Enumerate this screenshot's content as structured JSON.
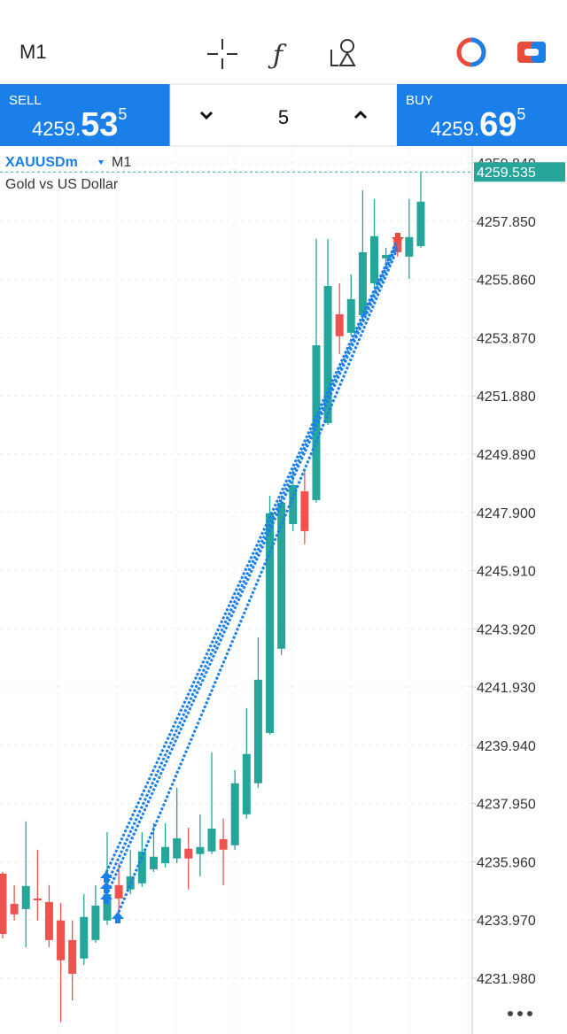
{
  "toolbar": {
    "timeframe": "M1"
  },
  "trade_bar": {
    "sell": {
      "label": "SELL",
      "price_head": "4259.",
      "price_big": "53",
      "price_sup": "5"
    },
    "lot": "5",
    "buy": {
      "label": "BUY",
      "price_head": "4259.",
      "price_big": "69",
      "price_sup": "5"
    }
  },
  "chart_data": {
    "type": "candlestick",
    "symbol": "XAUUSDm",
    "timeframe": "M1",
    "description": "Gold vs US Dollar",
    "up_color": "#26a69a",
    "down_color": "#ef5350",
    "ylim": [
      4230.07,
      4260.42
    ],
    "yticks": [
      {
        "value": 4259.84,
        "label": "4259.840"
      },
      {
        "value": 4257.85,
        "label": "4257.850"
      },
      {
        "value": 4255.86,
        "label": "4255.860"
      },
      {
        "value": 4253.87,
        "label": "4253.870"
      },
      {
        "value": 4251.88,
        "label": "4251.880"
      },
      {
        "value": 4249.89,
        "label": "4249.890"
      },
      {
        "value": 4247.9,
        "label": "4247.900"
      },
      {
        "value": 4245.91,
        "label": "4245.910"
      },
      {
        "value": 4243.92,
        "label": "4243.920"
      },
      {
        "value": 4241.93,
        "label": "4241.930"
      },
      {
        "value": 4239.94,
        "label": "4239.940"
      },
      {
        "value": 4237.95,
        "label": "4237.950"
      },
      {
        "value": 4235.96,
        "label": "4235.960"
      },
      {
        "value": 4233.97,
        "label": "4233.970"
      },
      {
        "value": 4231.98,
        "label": "4231.980"
      }
    ],
    "grid": true,
    "current_price": 4259.535,
    "candles": [
      {
        "open": 4235.55,
        "high": 4235.61,
        "low": 4233.34,
        "close": 4233.49
      },
      {
        "open": 4234.52,
        "high": 4235.16,
        "low": 4233.95,
        "close": 4234.16
      },
      {
        "open": 4234.34,
        "high": 4237.34,
        "low": 4233.04,
        "close": 4235.13
      },
      {
        "open": 4234.7,
        "high": 4236.37,
        "low": 4233.95,
        "close": 4234.64
      },
      {
        "open": 4234.58,
        "high": 4235.16,
        "low": 4233.04,
        "close": 4233.28
      },
      {
        "open": 4233.95,
        "high": 4234.55,
        "low": 4230.47,
        "close": 4232.59
      },
      {
        "open": 4233.28,
        "high": 4233.95,
        "low": 4231.22,
        "close": 4232.13
      },
      {
        "open": 4232.65,
        "high": 4234.85,
        "low": 4232.43,
        "close": 4234.07
      },
      {
        "open": 4233.28,
        "high": 4235.16,
        "low": 4233.19,
        "close": 4234.46
      },
      {
        "open": 4233.95,
        "high": 4236.97,
        "low": 4233.8,
        "close": 4234.85
      },
      {
        "open": 4235.16,
        "high": 4235.91,
        "low": 4234.1,
        "close": 4234.7
      },
      {
        "open": 4235.01,
        "high": 4236.37,
        "low": 4234.85,
        "close": 4235.46
      },
      {
        "open": 4235.22,
        "high": 4236.97,
        "low": 4235.1,
        "close": 4236.31
      },
      {
        "open": 4235.7,
        "high": 4237.28,
        "low": 4235.61,
        "close": 4236.13
      },
      {
        "open": 4235.91,
        "high": 4237.28,
        "low": 4235.76,
        "close": 4236.46
      },
      {
        "open": 4236.07,
        "high": 4238.49,
        "low": 4235.91,
        "close": 4236.76
      },
      {
        "open": 4236.4,
        "high": 4237.12,
        "low": 4235.01,
        "close": 4236.07
      },
      {
        "open": 4236.22,
        "high": 4237.58,
        "low": 4235.46,
        "close": 4236.46
      },
      {
        "open": 4236.31,
        "high": 4239.7,
        "low": 4236.22,
        "close": 4237.09
      },
      {
        "open": 4236.73,
        "high": 4237.43,
        "low": 4235.16,
        "close": 4236.37
      },
      {
        "open": 4236.52,
        "high": 4239.09,
        "low": 4236.37,
        "close": 4238.64
      },
      {
        "open": 4237.58,
        "high": 4241.21,
        "low": 4237.43,
        "close": 4239.64
      },
      {
        "open": 4238.64,
        "high": 4243.63,
        "low": 4238.49,
        "close": 4242.18
      },
      {
        "open": 4240.36,
        "high": 4248.47,
        "low": 4240.3,
        "close": 4247.87
      },
      {
        "open": 4243.24,
        "high": 4248.47,
        "low": 4243.03,
        "close": 4248.23
      },
      {
        "open": 4247.5,
        "high": 4249.38,
        "low": 4247.26,
        "close": 4248.83
      },
      {
        "open": 4248.62,
        "high": 4249.38,
        "low": 4246.81,
        "close": 4247.26
      },
      {
        "open": 4248.32,
        "high": 4257.25,
        "low": 4248.23,
        "close": 4253.61
      },
      {
        "open": 4250.95,
        "high": 4257.25,
        "low": 4250.89,
        "close": 4255.64
      },
      {
        "open": 4254.67,
        "high": 4255.73,
        "low": 4253.31,
        "close": 4253.92
      },
      {
        "open": 4254.04,
        "high": 4256.03,
        "low": 4253.92,
        "close": 4255.19
      },
      {
        "open": 4254.64,
        "high": 4258.91,
        "low": 4254.52,
        "close": 4256.79
      },
      {
        "open": 4255.73,
        "high": 4258.61,
        "low": 4255.58,
        "close": 4257.34
      },
      {
        "open": 4256.58,
        "high": 4256.94,
        "low": 4256.34,
        "close": 4256.7
      },
      {
        "open": 4257.25,
        "high": 4257.4,
        "low": 4256.64,
        "close": 4256.79
      },
      {
        "open": 4256.64,
        "high": 4258.61,
        "low": 4255.88,
        "close": 4257.31
      },
      {
        "open": 4257.0,
        "high": 4259.51,
        "low": 4256.94,
        "close": 4258.52
      }
    ]
  }
}
